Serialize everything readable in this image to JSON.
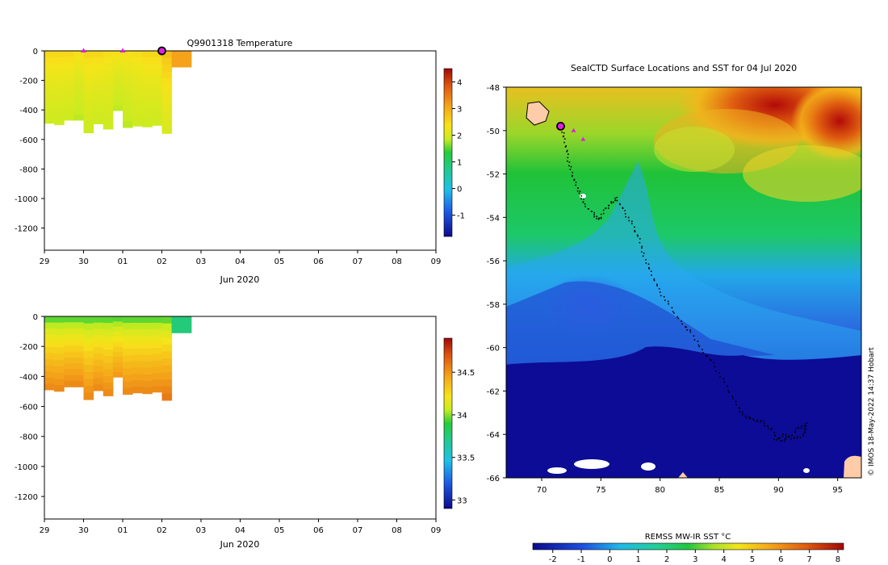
{
  "chart_data": [
    {
      "type": "heatmap",
      "title": "Q9901318  Temperature",
      "xlabel": "Jun 2020",
      "x_ticks": [
        "29",
        "30",
        "01",
        "02",
        "03",
        "04",
        "05",
        "06",
        "07",
        "08",
        "09"
      ],
      "y_ticks": [
        0,
        -200,
        -400,
        -600,
        -800,
        -1000,
        -1200
      ],
      "ylim": [
        -1350,
        0
      ],
      "colorbar": {
        "ticks": [
          -1,
          0,
          1,
          2,
          3,
          4
        ],
        "range": [
          -1.8,
          4.5
        ]
      },
      "columns": [
        {
          "day": 0.0,
          "max_depth": 490,
          "surface": 2.6,
          "deep": 1.9
        },
        {
          "day": 0.25,
          "max_depth": 500,
          "surface": 2.6,
          "deep": 1.9
        },
        {
          "day": 0.5,
          "max_depth": 470,
          "surface": 2.6,
          "deep": 1.9
        },
        {
          "day": 0.75,
          "max_depth": 470,
          "surface": 2.5,
          "deep": 1.8
        },
        {
          "day": 1.0,
          "max_depth": 555,
          "surface": 2.6,
          "deep": 1.9
        },
        {
          "day": 1.25,
          "max_depth": 495,
          "surface": 2.6,
          "deep": 1.9
        },
        {
          "day": 1.5,
          "max_depth": 530,
          "surface": 2.5,
          "deep": 1.9
        },
        {
          "day": 1.75,
          "max_depth": 405,
          "surface": 2.5,
          "deep": 1.8
        },
        {
          "day": 2.0,
          "max_depth": 520,
          "surface": 2.5,
          "deep": 1.8
        },
        {
          "day": 2.25,
          "max_depth": 510,
          "surface": 2.5,
          "deep": 1.9
        },
        {
          "day": 2.5,
          "max_depth": 515,
          "surface": 2.6,
          "deep": 1.9
        },
        {
          "day": 2.75,
          "max_depth": 505,
          "surface": 2.6,
          "deep": 1.9
        },
        {
          "day": 3.0,
          "max_depth": 560,
          "surface": 2.9,
          "deep": 2.0
        },
        {
          "day": 3.25,
          "max_depth": 110,
          "surface": 3.1,
          "deep": 3.1
        },
        {
          "day": 3.5,
          "max_depth": 110,
          "surface": 3.1,
          "deep": 3.1
        }
      ],
      "markers_days": [
        1.0,
        2.0,
        3.0
      ]
    },
    {
      "type": "heatmap",
      "title": "",
      "xlabel": "Jun 2020",
      "x_ticks": [
        "29",
        "30",
        "01",
        "02",
        "03",
        "04",
        "05",
        "06",
        "07",
        "08",
        "09"
      ],
      "y_ticks": [
        0,
        -200,
        -400,
        -600,
        -800,
        -1000,
        -1200
      ],
      "ylim": [
        -1350,
        0
      ],
      "colorbar": {
        "ticks": [
          33,
          33.5,
          34,
          34.5
        ],
        "range": [
          32.9,
          34.9
        ]
      },
      "columns": [
        {
          "day": 0.0,
          "max_depth": 490,
          "surface": 33.85,
          "deep": 34.55
        },
        {
          "day": 0.25,
          "max_depth": 500,
          "surface": 33.85,
          "deep": 34.55
        },
        {
          "day": 0.5,
          "max_depth": 470,
          "surface": 33.85,
          "deep": 34.55
        },
        {
          "day": 0.75,
          "max_depth": 470,
          "surface": 33.85,
          "deep": 34.55
        },
        {
          "day": 1.0,
          "max_depth": 555,
          "surface": 33.85,
          "deep": 34.55
        },
        {
          "day": 1.25,
          "max_depth": 495,
          "surface": 33.85,
          "deep": 34.55
        },
        {
          "day": 1.5,
          "max_depth": 530,
          "surface": 33.85,
          "deep": 34.55
        },
        {
          "day": 1.75,
          "max_depth": 405,
          "surface": 33.85,
          "deep": 34.5
        },
        {
          "day": 2.0,
          "max_depth": 520,
          "surface": 33.85,
          "deep": 34.55
        },
        {
          "day": 2.25,
          "max_depth": 510,
          "surface": 33.85,
          "deep": 34.55
        },
        {
          "day": 2.5,
          "max_depth": 515,
          "surface": 33.85,
          "deep": 34.55
        },
        {
          "day": 2.75,
          "max_depth": 505,
          "surface": 33.85,
          "deep": 34.55
        },
        {
          "day": 3.0,
          "max_depth": 560,
          "surface": 33.85,
          "deep": 34.6
        },
        {
          "day": 3.25,
          "max_depth": 110,
          "surface": 33.75,
          "deep": 33.75
        },
        {
          "day": 3.5,
          "max_depth": 110,
          "surface": 33.75,
          "deep": 33.75
        }
      ]
    },
    {
      "type": "heatmap",
      "title": "SealCTD Surface Locations and SST for 04 Jul 2020",
      "xlim": [
        67,
        97
      ],
      "ylim": [
        -66,
        -48
      ],
      "x_ticks": [
        70,
        75,
        80,
        85,
        90,
        95
      ],
      "y_ticks": [
        -48,
        -50,
        -52,
        -54,
        -56,
        -58,
        -60,
        -62,
        -64,
        -66
      ],
      "colorbar": {
        "label": "REMSS MW-IR SST °C",
        "ticks": [
          -2,
          -1,
          0,
          1,
          2,
          3,
          4,
          5,
          6,
          7,
          8
        ],
        "range": [
          -2.7,
          8.2
        ]
      },
      "track": [
        [
          71.6,
          -49.8
        ],
        [
          71.9,
          -50.4
        ],
        [
          72.1,
          -51.1
        ],
        [
          72.4,
          -51.8
        ],
        [
          72.8,
          -52.4
        ],
        [
          73.2,
          -52.9
        ],
        [
          73.6,
          -53.4
        ],
        [
          74.3,
          -53.8
        ],
        [
          74.8,
          -54.1
        ],
        [
          75.3,
          -53.6
        ],
        [
          75.9,
          -53.3
        ],
        [
          76.3,
          -53.1
        ],
        [
          76.9,
          -53.7
        ],
        [
          77.6,
          -54.3
        ],
        [
          78.2,
          -55.0
        ],
        [
          78.6,
          -55.8
        ],
        [
          79.2,
          -56.5
        ],
        [
          79.8,
          -57.3
        ],
        [
          80.7,
          -58.0
        ],
        [
          81.7,
          -58.8
        ],
        [
          82.6,
          -59.3
        ],
        [
          83.5,
          -60.1
        ],
        [
          84.4,
          -60.7
        ],
        [
          85.4,
          -61.6
        ],
        [
          86.3,
          -62.5
        ],
        [
          87.0,
          -63.1
        ],
        [
          87.8,
          -63.3
        ],
        [
          88.6,
          -63.4
        ],
        [
          89.4,
          -63.8
        ],
        [
          90.1,
          -64.3
        ],
        [
          90.9,
          -64.1
        ],
        [
          91.6,
          -63.7
        ],
        [
          92.3,
          -63.5
        ],
        [
          92.1,
          -64.0
        ],
        [
          91.2,
          -64.2
        ],
        [
          90.4,
          -64.0
        ],
        [
          89.5,
          -64.3
        ]
      ],
      "markers": [
        [
          71.6,
          -49.8
        ],
        [
          72.7,
          -50.0
        ],
        [
          73.5,
          -50.4
        ]
      ]
    }
  ],
  "footer": {
    "credit": "© IMOS 18-May-2022 14:37 Hobart"
  },
  "colors": {
    "marker": "#e020e0",
    "land": "#ffccaa",
    "track": "#000000"
  }
}
